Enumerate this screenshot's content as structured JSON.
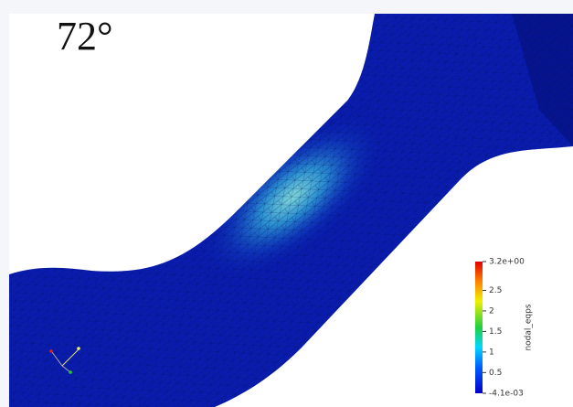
{
  "view_label": "72°",
  "colorbar": {
    "title": "nodal_eqps",
    "range": [
      -0.0041,
      3.2
    ],
    "ticks": [
      {
        "value": 3.2,
        "label": "3.2e+00"
      },
      {
        "value": 2.5,
        "label": "2.5"
      },
      {
        "value": 2,
        "label": "2"
      },
      {
        "value": 1.5,
        "label": "1.5"
      },
      {
        "value": 1,
        "label": "1"
      },
      {
        "value": 0.5,
        "label": "0.5"
      },
      {
        "value": -0.0041,
        "label": "-4.1e-03"
      }
    ]
  }
}
